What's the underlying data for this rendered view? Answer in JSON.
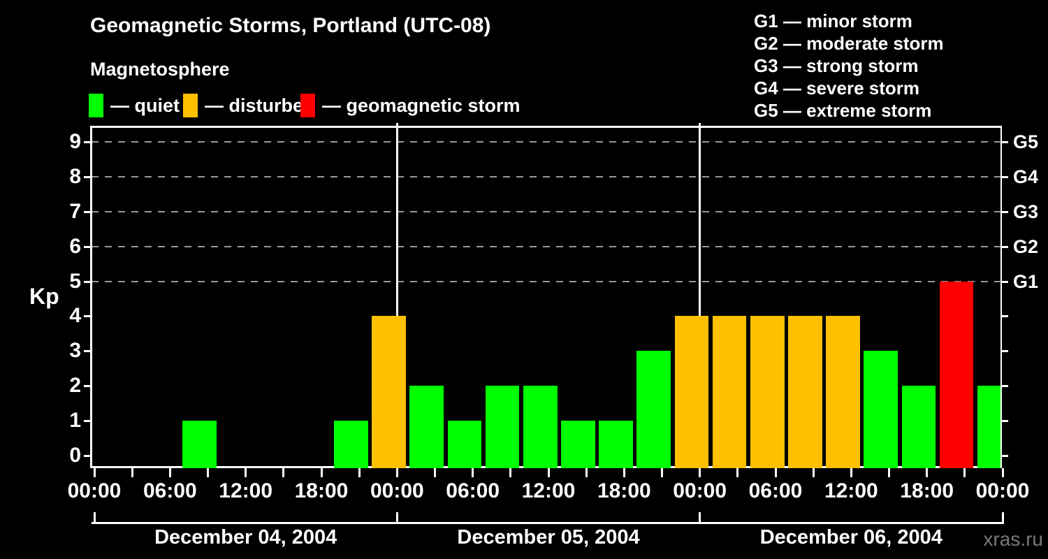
{
  "header": {
    "title": "Geomagnetic Storms, Portland (UTC-08)",
    "subtitle": "Magnetosphere"
  },
  "legend": {
    "items": [
      {
        "key": "quiet",
        "label": "— quiet"
      },
      {
        "key": "disturbed",
        "label": "— disturbed"
      },
      {
        "key": "storm",
        "label": "— geomagnetic storm"
      }
    ]
  },
  "g_legend": {
    "items": [
      "G1 — minor storm",
      "G2 — moderate storm",
      "G3 — strong storm",
      "G4 — severe storm",
      "G5 — extreme storm"
    ]
  },
  "colors": {
    "quiet": "#00ff00",
    "disturbed": "#ffc000",
    "storm": "#ff0000",
    "axis": "#ffffff",
    "grid": "#999999",
    "watermark": "#787878"
  },
  "chart_data": {
    "type": "bar",
    "title": "Geomagnetic Storms, Portland (UTC-08)",
    "subtitle": "Magnetosphere",
    "ylabel": "Kp",
    "ylim": [
      0,
      9
    ],
    "y_ticks": [
      0,
      1,
      2,
      3,
      4,
      5,
      6,
      7,
      8,
      9
    ],
    "grid_levels": [
      5,
      6,
      7,
      8,
      9
    ],
    "right_axis_labels": [
      {
        "kp": 5,
        "text": "G1"
      },
      {
        "kp": 6,
        "text": "G2"
      },
      {
        "kp": 7,
        "text": "G3"
      },
      {
        "kp": 8,
        "text": "G4"
      },
      {
        "kp": 9,
        "text": "G5"
      }
    ],
    "hours_per_bar": 3,
    "x_tick_interval_hours": 3,
    "x_label_interval_hours": 6,
    "x_hour_labels": [
      "00:00",
      "06:00",
      "12:00",
      "18:00",
      "00:00",
      "06:00",
      "12:00",
      "18:00",
      "00:00",
      "06:00",
      "12:00",
      "18:00",
      "00:00"
    ],
    "days": [
      {
        "label": "December 04, 2004",
        "kp": [
          0,
          0,
          1,
          0,
          0,
          0,
          1,
          4
        ]
      },
      {
        "label": "December 05, 2004",
        "kp": [
          2,
          1,
          2,
          2,
          1,
          1,
          3,
          4
        ]
      },
      {
        "label": "December 06, 2004",
        "kp": [
          4,
          4,
          4,
          4,
          3,
          2,
          5,
          2
        ]
      }
    ],
    "color_rule": {
      "storm_min_kp": 5,
      "disturbed_min_kp": 4,
      "quiet_min_kp": 1
    },
    "legend_position": "top",
    "grid": "dashed horizontal at G-levels only"
  },
  "watermark": "xras.ru"
}
